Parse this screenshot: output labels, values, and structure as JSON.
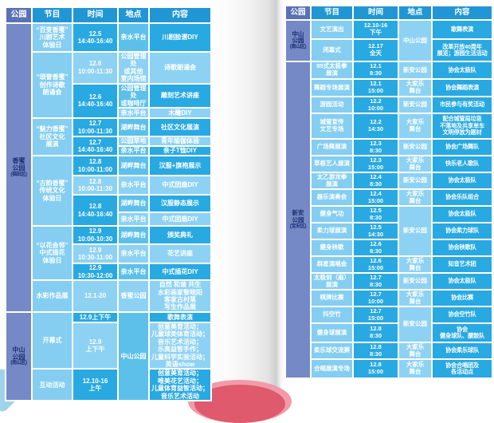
{
  "colors": {
    "header_blue": "#2196d4",
    "park_header_blue": "#5a71b8",
    "park_cell_blue": "#7489c5",
    "park_text": "#1d2f73",
    "cell_dark": "#29a9e1",
    "cell_light": "#8ed2f3",
    "cell_mid": "#5dc0eb",
    "cell_program": "#85cef1",
    "page_background": "#ffffff",
    "fold_shadow": "#cfcfcf",
    "pink_page_edge": "#df5a6c",
    "blue_page_corner": "#9ed3ee"
  },
  "left_table": {
    "headers": [
      "公园",
      "节目",
      "时间",
      "地点",
      "内容"
    ],
    "rows": [
      {
        "cells": [
          {
            "c": "park",
            "t": "香蜜\n公园",
            "sub": "(福田区)",
            "s": "k",
            "rs": 15
          },
          {
            "c": "program",
            "t": "“百变香蜜”\n川剧艺术\n体验日",
            "s": "p"
          },
          {
            "c": "time",
            "t": "12.5\n14:40-16:40",
            "s": "d"
          },
          {
            "c": "location",
            "t": "亲水平台",
            "s": "m"
          },
          {
            "c": "content",
            "t": "川剧脸谱DIY",
            "s": "d"
          }
        ]
      },
      {
        "cells": [
          {
            "c": "program",
            "t": "“颂誉香蜜”\n创作诗歌\n朗诵会",
            "s": "p",
            "rs": 3
          },
          {
            "c": "time",
            "t": "12.6\n10:00-11:30",
            "s": "l"
          },
          {
            "c": "location",
            "t": "公园管理处\n或其他\n室内场馆",
            "s": "l"
          },
          {
            "c": "content",
            "t": "诗歌朗诵会",
            "s": "l"
          }
        ]
      },
      {
        "cells": [
          {
            "c": "time",
            "t": "12.6\n14:40-16:40",
            "s": "d",
            "rs": 2
          },
          {
            "c": "location",
            "t": "公园管理处\n或咖啡厅",
            "s": "m"
          },
          {
            "c": "content",
            "t": "雕刻艺术讲座",
            "s": "d"
          }
        ]
      },
      {
        "cells": [
          {
            "c": "location",
            "t": "亲水平台",
            "s": "l"
          },
          {
            "c": "content",
            "t": "木雕DIY",
            "s": "l"
          }
        ]
      },
      {
        "cells": [
          {
            "c": "program",
            "t": "“魅力香蜜”\n社区文化\n展演",
            "s": "p",
            "rs": 3
          },
          {
            "c": "time",
            "t": "12.7\n10:00-11:30",
            "s": "d"
          },
          {
            "c": "location",
            "t": "湖畔舞台",
            "s": "m"
          },
          {
            "c": "content",
            "t": "社区文化展演",
            "s": "d"
          }
        ]
      },
      {
        "cells": [
          {
            "c": "time",
            "t": "12.7\n14:40-16:40",
            "s": "d",
            "rs": 2
          },
          {
            "c": "location",
            "t": "公园草地",
            "s": "l"
          },
          {
            "c": "content",
            "t": "青年瑜伽体验",
            "s": "l"
          }
        ]
      },
      {
        "cells": [
          {
            "c": "location",
            "t": "亲水平台",
            "s": "m"
          },
          {
            "c": "content",
            "t": "亲子T恤DIY",
            "s": "d"
          }
        ]
      },
      {
        "cells": [
          {
            "c": "program",
            "t": "“古韵香蜜”\n传统文化\n体验日",
            "s": "p",
            "rs": 4
          },
          {
            "c": "time",
            "t": "12.8\n10:00-11:00",
            "s": "d"
          },
          {
            "c": "location",
            "t": "湖畔舞台",
            "s": "m"
          },
          {
            "c": "content",
            "t": "汉服+旗袍展示",
            "s": "d"
          }
        ]
      },
      {
        "cells": [
          {
            "c": "time",
            "t": "12.8\n10:00-11:30",
            "s": "l"
          },
          {
            "c": "location",
            "t": "亲水平台",
            "s": "l"
          },
          {
            "c": "content",
            "t": "中式团扇DIY",
            "s": "l"
          }
        ]
      },
      {
        "cells": [
          {
            "c": "time",
            "t": "12.8\n14:40-16:40",
            "s": "d",
            "rs": 2
          },
          {
            "c": "location",
            "t": "湖畔舞台",
            "s": "m"
          },
          {
            "c": "content",
            "t": "汉服静态展示",
            "s": "d"
          }
        ]
      },
      {
        "cells": [
          {
            "c": "location",
            "t": "亲水平台",
            "s": "l"
          },
          {
            "c": "content",
            "t": "中式团扇DIY",
            "s": "l"
          }
        ]
      },
      {
        "cells": [
          {
            "c": "program",
            "t": "“以花会邻”\n中式插花\n体验日",
            "s": "p",
            "rs": 3
          },
          {
            "c": "time",
            "t": "12.9\n10:00-10:30",
            "s": "d"
          },
          {
            "c": "location",
            "t": "湖畔舞台",
            "s": "m"
          },
          {
            "c": "content",
            "t": "颁奖典礼",
            "s": "d"
          }
        ]
      },
      {
        "cells": [
          {
            "c": "time",
            "t": "12.9\n10:30-11:00",
            "s": "l"
          },
          {
            "c": "location",
            "t": "亲水平台",
            "s": "l"
          },
          {
            "c": "content",
            "t": "花艺讲座",
            "s": "l"
          }
        ]
      },
      {
        "cells": [
          {
            "c": "time",
            "t": "12.9\n10:30-12:00",
            "s": "d"
          },
          {
            "c": "location",
            "t": "亲水平台",
            "s": "m"
          },
          {
            "c": "content",
            "t": "中式插花DIY",
            "s": "d"
          }
        ]
      },
      {
        "cells": [
          {
            "c": "program",
            "t": "水彩作品展",
            "s": "p"
          },
          {
            "c": "time",
            "t": "12.1-20",
            "s": "l"
          },
          {
            "c": "location",
            "t": "香蜜公园",
            "s": "l"
          },
          {
            "c": "content",
            "t": "自然 和谐 共生\n水彩画家黎晓阳\n客家古村落\n写生作品展",
            "s": "l"
          }
        ]
      },
      {
        "cells": [
          {
            "c": "park",
            "t": "中山\n公园",
            "sub": "(南山区)",
            "s": "k",
            "rs": 3
          },
          {
            "c": "program",
            "t": "开幕式",
            "s": "p",
            "rs": 2
          },
          {
            "c": "time",
            "t": "12.9上下午",
            "s": "d"
          },
          {
            "c": "location",
            "t": "中山公园",
            "s": "m",
            "rs": 3
          },
          {
            "c": "content",
            "t": "歌舞表演",
            "s": "d"
          }
        ]
      },
      {
        "cells": [
          {
            "c": "time",
            "t": "12.9\n上下午",
            "s": "l"
          },
          {
            "c": "content",
            "t": "创意美育活动；\n儿童球类体育活动；\n音乐艺术活动；\n乐高益智手作；\n儿童科学实验活动；\n英语show",
            "s": "l"
          }
        ]
      },
      {
        "cells": [
          {
            "c": "program",
            "t": "互动活动",
            "s": "p"
          },
          {
            "c": "time",
            "t": "12.10-16\n上午",
            "s": "d"
          },
          {
            "c": "content",
            "t": "创意美育活动；\n唯美花艺活动；\n儿童体育益智活动；\n音乐艺术活动",
            "s": "d"
          }
        ]
      }
    ]
  },
  "right_table": {
    "headers": [
      "公园",
      "节目",
      "时间",
      "地点",
      "内容"
    ],
    "rows": [
      {
        "cells": [
          {
            "c": "park",
            "t": "中山\n公园",
            "sub": "(南山区)",
            "s": "k",
            "rs": 2
          },
          {
            "c": "program",
            "t": "文艺演出",
            "s": "p"
          },
          {
            "c": "time",
            "t": "12.10-16\n下午",
            "s": "d"
          },
          {
            "c": "location",
            "t": "中山公园",
            "s": "l",
            "rs": 2
          },
          {
            "c": "content",
            "t": "歌舞表演",
            "s": "d"
          }
        ]
      },
      {
        "cells": [
          {
            "c": "program",
            "t": "闭幕式",
            "s": "p"
          },
          {
            "c": "time",
            "t": "12.17\n全天",
            "s": "d"
          },
          {
            "c": "content",
            "t": "改革开放40周年\n展览；游园生活活动",
            "s": "d"
          }
        ]
      },
      {
        "cells": [
          {
            "c": "park",
            "t": "新安\n公园",
            "sub": "(宝安区)",
            "s": "k",
            "rs": 18
          },
          {
            "c": "program",
            "t": "85式太极拳\n展演",
            "s": "p"
          },
          {
            "c": "time",
            "t": "12.1\n8:30",
            "s": "d"
          },
          {
            "c": "location",
            "t": "新安公园",
            "s": "l"
          },
          {
            "c": "content",
            "t": "协会太极队",
            "s": "d"
          }
        ]
      },
      {
        "cells": [
          {
            "c": "program",
            "t": "舞蹈专场展演",
            "s": "p"
          },
          {
            "c": "time",
            "t": "12.1\n15:00",
            "s": "d"
          },
          {
            "c": "location",
            "t": "大家乐\n舞台",
            "s": "l"
          },
          {
            "c": "content",
            "t": "协会舞蹈表演",
            "s": "d"
          }
        ]
      },
      {
        "cells": [
          {
            "c": "program",
            "t": "游园活动",
            "s": "p"
          },
          {
            "c": "time",
            "t": "12.2\n10:00",
            "s": "d"
          },
          {
            "c": "location",
            "t": "新安公园",
            "s": "l"
          },
          {
            "c": "content",
            "t": "市民参与有奖活动",
            "s": "d"
          }
        ]
      },
      {
        "cells": [
          {
            "c": "program",
            "t": "城管宣传\n文艺专场",
            "s": "p"
          },
          {
            "c": "time",
            "t": "12.2\n14:30",
            "s": "d"
          },
          {
            "c": "location",
            "t": "大家乐\n舞台",
            "s": "l"
          },
          {
            "c": "content",
            "t": "配合城管局垃圾\n不落地及共享单车\n文明停放为题材",
            "s": "d"
          }
        ]
      },
      {
        "cells": [
          {
            "c": "program",
            "t": "广场舞展演",
            "s": "p"
          },
          {
            "c": "time",
            "t": "12.3\n8:30",
            "s": "d"
          },
          {
            "c": "location",
            "t": "新安公园",
            "s": "l"
          },
          {
            "c": "content",
            "t": "协会广场舞队",
            "s": "d"
          }
        ]
      },
      {
        "cells": [
          {
            "c": "program",
            "t": "草根艺人展演",
            "s": "p"
          },
          {
            "c": "time",
            "t": "12.3\n15:00",
            "s": "d"
          },
          {
            "c": "location",
            "t": "大家乐\n舞台",
            "s": "l"
          },
          {
            "c": "content",
            "t": "快乐老人歌队",
            "s": "d"
          }
        ]
      },
      {
        "cells": [
          {
            "c": "program",
            "t": "太乙游龙拳\n展演",
            "s": "p"
          },
          {
            "c": "time",
            "t": "12.4\n8:30",
            "s": "d"
          },
          {
            "c": "location",
            "t": "新安公园",
            "s": "l"
          },
          {
            "c": "content",
            "t": "协会太极队",
            "s": "d"
          }
        ]
      },
      {
        "cells": [
          {
            "c": "program",
            "t": "器乐演奏会",
            "s": "p"
          },
          {
            "c": "time",
            "t": "12.4\n15:00",
            "s": "d"
          },
          {
            "c": "location",
            "t": "大家乐\n舞台",
            "s": "l"
          },
          {
            "c": "content",
            "t": "协会乐队组合",
            "s": "d"
          }
        ]
      },
      {
        "cells": [
          {
            "c": "program",
            "t": "健身气功",
            "s": "p"
          },
          {
            "c": "time",
            "t": "12.5\n8:30",
            "s": "d"
          },
          {
            "c": "location",
            "t": "新安公园",
            "s": "l",
            "rs": 3
          },
          {
            "c": "content",
            "t": "协会太极队",
            "s": "d"
          }
        ]
      },
      {
        "cells": [
          {
            "c": "program",
            "t": "柔力球展演",
            "s": "p"
          },
          {
            "c": "time",
            "t": "12.5\n14:30",
            "s": "d"
          },
          {
            "c": "content",
            "t": "协会柔力球队",
            "s": "d"
          }
        ]
      },
      {
        "cells": [
          {
            "c": "program",
            "t": "健身秧歌",
            "s": "p"
          },
          {
            "c": "time",
            "t": "12.6\n8:30",
            "s": "d"
          },
          {
            "c": "content",
            "t": "协会秧歌队",
            "s": "d"
          }
        ]
      },
      {
        "cells": [
          {
            "c": "program",
            "t": "群星演唱会",
            "s": "p"
          },
          {
            "c": "time",
            "t": "12.6\n15:00",
            "s": "d"
          },
          {
            "c": "location",
            "t": "大家乐\n舞台",
            "s": "l"
          },
          {
            "c": "content",
            "t": "知音艺术团",
            "s": "d"
          }
        ]
      },
      {
        "cells": [
          {
            "c": "program",
            "t": "太极剑（扇）\n展演",
            "s": "p"
          },
          {
            "c": "time",
            "t": "12.7\n8:30",
            "s": "d"
          },
          {
            "c": "location",
            "t": "新安公园",
            "s": "l"
          },
          {
            "c": "content",
            "t": "协会太极队",
            "s": "d"
          }
        ]
      },
      {
        "cells": [
          {
            "c": "program",
            "t": "棋牌比赛",
            "s": "p"
          },
          {
            "c": "time",
            "t": "12.7\n10:00",
            "s": "d"
          },
          {
            "c": "location",
            "t": "大家乐\n舞台",
            "s": "l"
          },
          {
            "c": "content",
            "t": "协会比赛",
            "s": "d"
          }
        ]
      },
      {
        "cells": [
          {
            "c": "program",
            "t": "抖空竹",
            "s": "p"
          },
          {
            "c": "time",
            "t": "12.7\n15:00",
            "s": "d"
          },
          {
            "c": "location",
            "t": "新安公园",
            "s": "l",
            "rs": 2
          },
          {
            "c": "content",
            "t": "协会空竹队",
            "s": "d"
          }
        ]
      },
      {
        "cells": [
          {
            "c": "program",
            "t": "健身球展演",
            "s": "p"
          },
          {
            "c": "time",
            "t": "12.8\n8:30",
            "s": "d"
          },
          {
            "c": "content",
            "t": "协会\n健身球队、腰鼓队",
            "s": "d"
          }
        ]
      },
      {
        "cells": [
          {
            "c": "program",
            "t": "柔乐球交流赛",
            "s": "p"
          },
          {
            "c": "time",
            "t": "12.8\n8:30",
            "s": "d"
          },
          {
            "c": "location",
            "t": "大家乐\n舞台",
            "s": "l"
          },
          {
            "c": "content",
            "t": "协会柔乐球队",
            "s": "d"
          }
        ]
      },
      {
        "cells": [
          {
            "c": "program",
            "t": "合唱展演专场",
            "s": "p"
          },
          {
            "c": "time",
            "t": "12.8\n15:00",
            "s": "d"
          },
          {
            "c": "location",
            "t": "大家乐\n舞台",
            "s": "l"
          },
          {
            "c": "content",
            "t": "协会合唱团及\n各活动点",
            "s": "d"
          }
        ]
      }
    ]
  }
}
